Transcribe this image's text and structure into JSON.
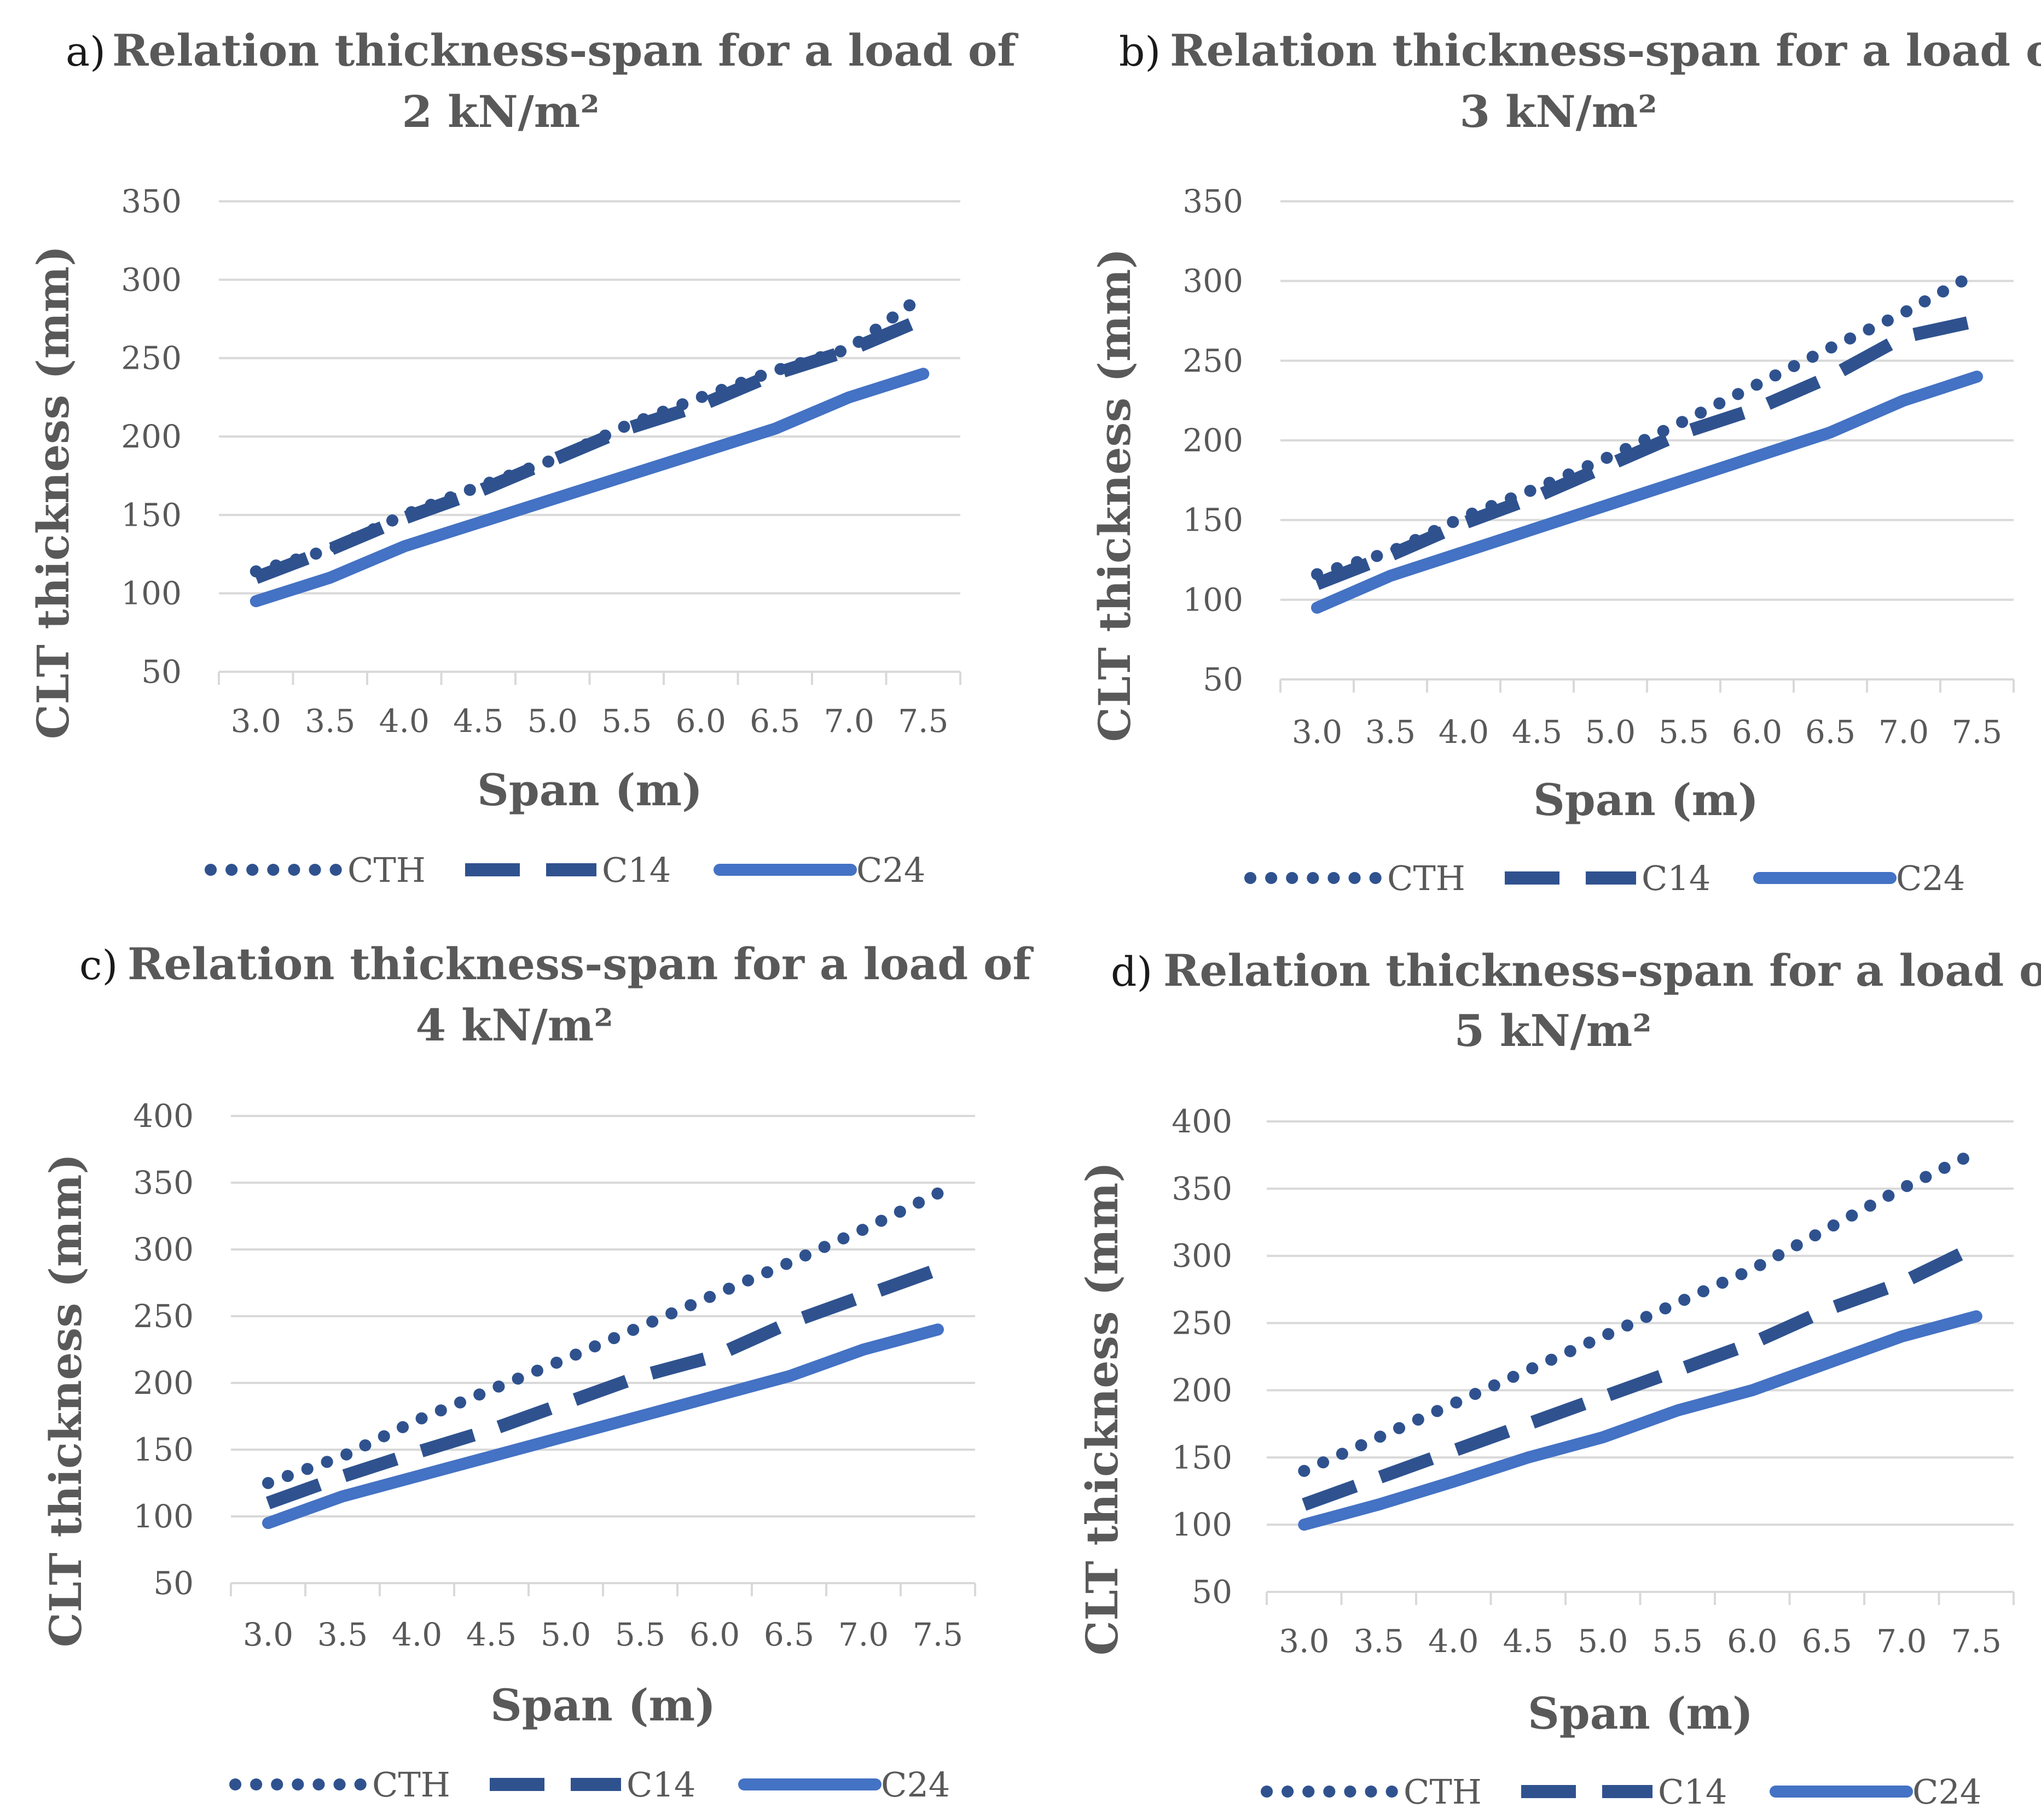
{
  "colors": {
    "CTH": "#2f528f",
    "C14": "#2f528f",
    "C24": "#4472c4",
    "grid": "#d9d9d9",
    "text": "#595959"
  },
  "chart_data": [
    {
      "type": "line",
      "panel": "a)",
      "title_line1": "Relation thickness-span for a load of",
      "title_line2": "2 kN/m²",
      "xlabel": "Span (m)",
      "ylabel": "CLT thickness (mm)",
      "categories": [
        "3.0",
        "3.5",
        "4.0",
        "4.5",
        "5.0",
        "5.5",
        "6.0",
        "6.5",
        "7.0",
        "7.5"
      ],
      "yticks": [
        "50",
        "100",
        "150",
        "200",
        "250",
        "300",
        "350"
      ],
      "ylim": [
        50,
        350
      ],
      "series": [
        {
          "name": "CTH",
          "style": "dotted",
          "values": [
            114,
            128,
            150,
            168,
            185,
            207,
            225,
            242,
            256,
            290
          ]
        },
        {
          "name": "C14",
          "style": "dashed",
          "values": [
            110,
            128,
            148,
            165,
            185,
            205,
            220,
            240,
            255,
            275
          ]
        },
        {
          "name": "C24",
          "style": "solid",
          "values": [
            95,
            110,
            130,
            145,
            160,
            175,
            190,
            205,
            225,
            240
          ]
        }
      ]
    },
    {
      "type": "line",
      "panel": "b)",
      "title_line1": "Relation thickness-span for a load of",
      "title_line2": "3 kN/m²",
      "xlabel": "Span (m)",
      "ylabel": "CLT thickness (mm)",
      "categories": [
        "3.0",
        "3.5",
        "4.0",
        "4.5",
        "5.0",
        "5.5",
        "6.0",
        "6.5",
        "7.0",
        "7.5"
      ],
      "yticks": [
        "50",
        "100",
        "150",
        "200",
        "250",
        "300",
        "350"
      ],
      "ylim": [
        50,
        350
      ],
      "series": [
        {
          "name": "CTH",
          "style": "dotted",
          "values": [
            116,
            130,
            152,
            170,
            190,
            212,
            235,
            258,
            280,
            305
          ]
        },
        {
          "name": "C14",
          "style": "dashed",
          "values": [
            110,
            128,
            148,
            165,
            185,
            205,
            220,
            240,
            265,
            275
          ]
        },
        {
          "name": "C24",
          "style": "solid",
          "values": [
            95,
            115,
            130,
            145,
            160,
            175,
            190,
            205,
            225,
            240
          ]
        }
      ]
    },
    {
      "type": "line",
      "panel": "c)",
      "title_line1": "Relation thickness-span for a load of",
      "title_line2": "4 kN/m²",
      "xlabel": "Span (m)",
      "ylabel": "CLT thickness (mm)",
      "categories": [
        "3.0",
        "3.5",
        "4.0",
        "4.5",
        "5.0",
        "5.5",
        "6.0",
        "6.5",
        "7.0",
        "7.5"
      ],
      "yticks": [
        "50",
        "100",
        "150",
        "200",
        "250",
        "300",
        "350",
        "400"
      ],
      "ylim": [
        50,
        400
      ],
      "series": [
        {
          "name": "CTH",
          "style": "dotted",
          "values": [
            125,
            145,
            172,
            195,
            218,
            242,
            266,
            290,
            315,
            342
          ]
        },
        {
          "name": "C14",
          "style": "dashed",
          "values": [
            110,
            130,
            148,
            165,
            185,
            205,
            220,
            245,
            265,
            285
          ]
        },
        {
          "name": "C24",
          "style": "solid",
          "values": [
            95,
            115,
            130,
            145,
            160,
            175,
            190,
            205,
            225,
            240
          ]
        }
      ]
    },
    {
      "type": "line",
      "panel": "d)",
      "title_line1": "Relation thickness-span for a load of",
      "title_line2": "5 kN/m²",
      "xlabel": "Span (m)",
      "ylabel": "CLT thickness (mm)",
      "categories": [
        "3.0",
        "3.5",
        "4.0",
        "4.5",
        "5.0",
        "5.5",
        "6.0",
        "6.5",
        "7.0",
        "7.5"
      ],
      "yticks": [
        "50",
        "100",
        "150",
        "200",
        "250",
        "300",
        "350",
        "400"
      ],
      "ylim": [
        50,
        400
      ],
      "series": [
        {
          "name": "CTH",
          "style": "dotted",
          "values": [
            140,
            165,
            190,
            215,
            240,
            265,
            290,
            320,
            350,
            377
          ]
        },
        {
          "name": "C14",
          "style": "dashed",
          "values": [
            115,
            135,
            155,
            175,
            195,
            215,
            235,
            260,
            280,
            307
          ]
        },
        {
          "name": "C24",
          "style": "solid",
          "values": [
            100,
            115,
            132,
            150,
            165,
            185,
            200,
            220,
            240,
            255
          ]
        }
      ]
    }
  ]
}
